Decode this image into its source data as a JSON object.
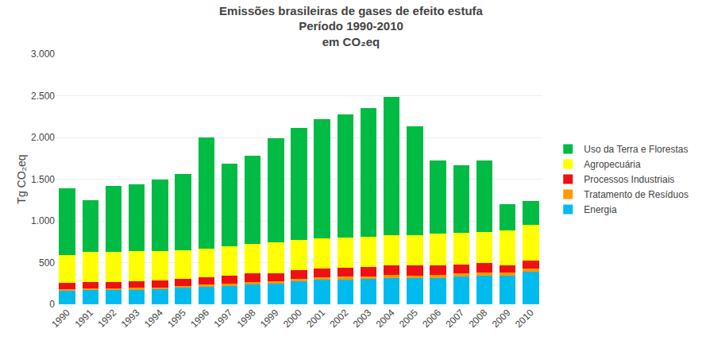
{
  "chart_data": {
    "type": "bar",
    "stacked": true,
    "title": "Emissões brasileiras de gases de efeito estufa\nPeríodo 1990-2010\nem CO₂eq",
    "ylabel": "Tg CO₂eq",
    "categories": [
      "1990",
      "1991",
      "1992",
      "1993",
      "1994",
      "1995",
      "1996",
      "1997",
      "1998",
      "1999",
      "2000",
      "2001",
      "2002",
      "2003",
      "2004",
      "2005",
      "2006",
      "2007",
      "2008",
      "2009",
      "2010"
    ],
    "series": [
      {
        "name": "Energia",
        "color": "#00BBEE",
        "values": [
          160,
          175,
          170,
          175,
          180,
          200,
          210,
          220,
          240,
          250,
          275,
          295,
          300,
          305,
          315,
          310,
          315,
          330,
          340,
          340,
          390
        ]
      },
      {
        "name": "Tratamento de Resíduos",
        "color": "#FF9900",
        "values": [
          20,
          20,
          20,
          22,
          22,
          22,
          24,
          25,
          28,
          30,
          30,
          30,
          32,
          32,
          35,
          35,
          38,
          38,
          38,
          38,
          40
        ]
      },
      {
        "name": "Processos Industriais",
        "color": "#EE1111",
        "values": [
          75,
          75,
          80,
          80,
          85,
          80,
          90,
          95,
          100,
          95,
          100,
          105,
          110,
          110,
          120,
          120,
          110,
          110,
          115,
          90,
          90
        ]
      },
      {
        "name": "Agropecuária",
        "color": "#FFFF00",
        "values": [
          340,
          360,
          360,
          360,
          355,
          350,
          340,
          360,
          360,
          370,
          370,
          365,
          355,
          360,
          360,
          360,
          380,
          380,
          375,
          420,
          430
        ]
      },
      {
        "name": "Uso da Terra e Florestas",
        "color": "#00BB44",
        "values": [
          800,
          620,
          790,
          800,
          850,
          910,
          1340,
          990,
          1050,
          1250,
          1340,
          1420,
          1480,
          1550,
          1660,
          1310,
          880,
          810,
          860,
          310,
          290
        ]
      }
    ],
    "ylim": [
      0,
      3000
    ],
    "yticks": [
      0,
      500,
      {
        "value": 1000,
        "label": "1.000"
      },
      {
        "value": 1500,
        "label": "1.500"
      },
      {
        "value": 2000,
        "label": "2.000"
      },
      {
        "value": 2500,
        "label": "2.500"
      },
      {
        "value": 3000,
        "label": "3.000"
      }
    ],
    "grid": true,
    "legend": "right"
  }
}
